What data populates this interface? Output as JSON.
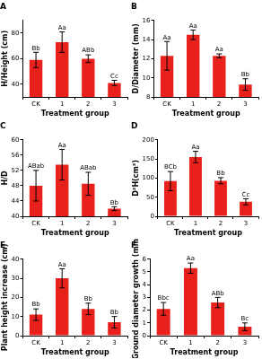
{
  "chart_data": [
    {
      "type": "bar",
      "title": "A",
      "x_label": "Treatment group",
      "y_label": "H/Height (cm)",
      "categories": [
        "CK",
        "1",
        "2",
        "3"
      ],
      "values": [
        59,
        73,
        60,
        41
      ],
      "errors": [
        6,
        8,
        3,
        2
      ],
      "annotations": [
        "Bb",
        "Aa",
        "ABb",
        "Cc"
      ],
      "color": "#e8211d",
      "ylim": [
        30,
        90
      ],
      "yticks": [
        40,
        60,
        80
      ],
      "grid": false
    },
    {
      "type": "bar",
      "title": "B",
      "x_label": "Treatment group",
      "y_label": "D/Diameter (mm)",
      "categories": [
        "CK",
        "1",
        "2",
        "3"
      ],
      "values": [
        12.3,
        14.5,
        12.3,
        9.3
      ],
      "errors": [
        1.5,
        0.5,
        0.2,
        0.6
      ],
      "annotations": [
        "Aa",
        "Aa",
        "Aa",
        "Bb"
      ],
      "color": "#e8211d",
      "ylim": [
        8,
        16
      ],
      "yticks": [
        8,
        10,
        12,
        14,
        16
      ],
      "grid": false
    },
    {
      "type": "bar",
      "title": "C",
      "x_label": "Treatment group",
      "y_label": "H/D",
      "categories": [
        "CK",
        "1",
        "2",
        "3"
      ],
      "values": [
        48,
        53.5,
        48.5,
        42
      ],
      "errors": [
        4,
        4,
        3,
        0.5
      ],
      "annotations": [
        "ABab",
        "Aa",
        "ABab",
        "Bb"
      ],
      "color": "#e8211d",
      "ylim": [
        40,
        60
      ],
      "yticks": [
        40,
        44,
        48,
        52,
        56,
        60
      ],
      "grid": false
    },
    {
      "type": "bar",
      "title": "D",
      "x_label": "Treatment group",
      "y_label": "D²H(cm³)",
      "categories": [
        "CK",
        "1",
        "2",
        "3"
      ],
      "values": [
        92,
        155,
        93,
        38
      ],
      "errors": [
        25,
        15,
        8,
        8
      ],
      "annotations": [
        "BCb",
        "Aa",
        "Bb",
        "Cc"
      ],
      "color": "#e8211d",
      "ylim": [
        0,
        200
      ],
      "yticks": [
        0,
        50,
        100,
        150,
        200
      ],
      "grid": false
    },
    {
      "type": "bar",
      "title": "E",
      "x_label": "Treatment group",
      "y_label": "Plant height increase (cm)",
      "categories": [
        "CK",
        "1",
        "2",
        "3"
      ],
      "values": [
        11,
        30,
        14,
        7
      ],
      "errors": [
        3,
        5,
        3,
        3
      ],
      "annotations": [
        "Bb",
        "Aa",
        "Bb",
        "Bb"
      ],
      "color": "#e8211d",
      "ylim": [
        0,
        40
      ],
      "yticks": [
        0,
        10,
        20,
        30,
        40
      ],
      "grid": false
    },
    {
      "type": "bar",
      "title": "F",
      "x_label": "Treatment group",
      "y_label": "Ground diameter growth (mm)",
      "categories": [
        "CK",
        "1",
        "2",
        "3"
      ],
      "values": [
        2.1,
        5.3,
        2.6,
        0.7
      ],
      "errors": [
        0.5,
        0.4,
        0.4,
        0.3
      ],
      "annotations": [
        "Bbc",
        "Aa",
        "ABb",
        "Bc"
      ],
      "color": "#e8211d",
      "ylim": [
        0,
        6
      ],
      "yticks": [
        0,
        1,
        2,
        3,
        4,
        5,
        6
      ],
      "grid": false
    }
  ]
}
